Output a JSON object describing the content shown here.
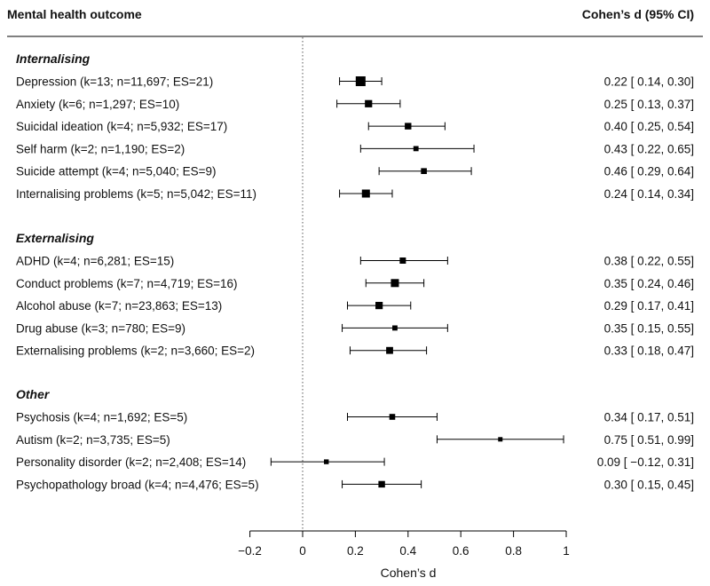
{
  "chart_data": {
    "type": "forest",
    "header": {
      "left": "Mental health outcome",
      "right": "Cohen’s d (95% CI)"
    },
    "xlabel": "Cohen’s d",
    "xlim": [
      -0.2,
      1
    ],
    "ticks": [
      "−0.2",
      "0",
      "0.2",
      "0.4",
      "0.6",
      "0.8",
      "1"
    ],
    "tick_values": [
      -0.2,
      0,
      0.2,
      0.4,
      0.6,
      0.8,
      1
    ],
    "reference_line": 0,
    "groups": [
      {
        "name": "Internalising",
        "rows": [
          {
            "label": "Depression (k=13; n=11,697; ES=21)",
            "d": 0.22,
            "lo": 0.14,
            "hi": 0.3,
            "text": "0.22 [ 0.14, 0.30]",
            "weight": 1.0
          },
          {
            "label": "Anxiety (k=6; n=1,297; ES=10)",
            "d": 0.25,
            "lo": 0.13,
            "hi": 0.37,
            "text": "0.25 [ 0.13, 0.37]",
            "weight": 0.65
          },
          {
            "label": "Suicidal ideation (k=4; n=5,932; ES=17)",
            "d": 0.4,
            "lo": 0.25,
            "hi": 0.54,
            "text": "0.40 [ 0.25, 0.54]",
            "weight": 0.55
          },
          {
            "label": "Self harm (k=2; n=1,190; ES=2)",
            "d": 0.43,
            "lo": 0.22,
            "hi": 0.65,
            "text": "0.43 [ 0.22, 0.65]",
            "weight": 0.35
          },
          {
            "label": "Suicide attempt (k=4; n=5,040; ES=9)",
            "d": 0.46,
            "lo": 0.29,
            "hi": 0.64,
            "text": "0.46 [ 0.29, 0.64]",
            "weight": 0.45
          },
          {
            "label": "Internalising problems (k=5; n=5,042; ES=11)",
            "d": 0.24,
            "lo": 0.14,
            "hi": 0.34,
            "text": "0.24 [ 0.14, 0.34]",
            "weight": 0.75
          }
        ]
      },
      {
        "name": "Externalising",
        "rows": [
          {
            "label": "ADHD (k=4; n=6,281; ES=15)",
            "d": 0.38,
            "lo": 0.22,
            "hi": 0.55,
            "text": "0.38 [ 0.22, 0.55]",
            "weight": 0.5
          },
          {
            "label": "Conduct problems (k=7; n=4,719; ES=16)",
            "d": 0.35,
            "lo": 0.24,
            "hi": 0.46,
            "text": "0.35 [ 0.24, 0.46]",
            "weight": 0.75
          },
          {
            "label": "Alcohol abuse (k=7; n=23,863; ES=13)",
            "d": 0.29,
            "lo": 0.17,
            "hi": 0.41,
            "text": "0.29 [ 0.17, 0.41]",
            "weight": 0.65
          },
          {
            "label": "Drug abuse (k=3; n=780; ES=9)",
            "d": 0.35,
            "lo": 0.15,
            "hi": 0.55,
            "text": "0.35 [ 0.15, 0.55]",
            "weight": 0.35
          },
          {
            "label": "Externalising problems (k=2; n=3,660; ES=2)",
            "d": 0.33,
            "lo": 0.18,
            "hi": 0.47,
            "text": "0.33 [ 0.18, 0.47]",
            "weight": 0.6
          }
        ]
      },
      {
        "name": "Other",
        "rows": [
          {
            "label": "Psychosis (k=4; n=1,692; ES=5)",
            "d": 0.34,
            "lo": 0.17,
            "hi": 0.51,
            "text": "0.34 [ 0.17, 0.51]",
            "weight": 0.45
          },
          {
            "label": "Autism (k=2; n=3,735; ES=5)",
            "d": 0.75,
            "lo": 0.51,
            "hi": 0.99,
            "text": "0.75 [ 0.51, 0.99]",
            "weight": 0.25
          },
          {
            "label": "Personality disorder (k=2; n=2,408; ES=14)",
            "d": 0.09,
            "lo": -0.12,
            "hi": 0.31,
            "text": "0.09 [ −0.12, 0.31]",
            "weight": 0.3
          },
          {
            "label": "Psychopathology broad (k=4; n=4,476; ES=5)",
            "d": 0.3,
            "lo": 0.15,
            "hi": 0.45,
            "text": "0.30 [ 0.15, 0.45]",
            "weight": 0.55
          }
        ]
      }
    ],
    "colors": {
      "ink": "#000000",
      "rule": "#000000",
      "reference": "#555555"
    }
  }
}
